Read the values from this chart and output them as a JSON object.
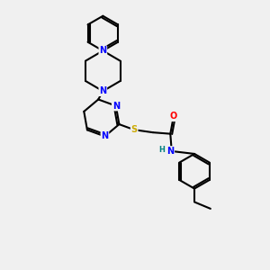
{
  "bg_color": "#f0f0f0",
  "atom_colors": {
    "N": "#0000ff",
    "O": "#ff0000",
    "S": "#ccaa00",
    "H": "#008080"
  },
  "bond_color": "#000000",
  "line_width": 1.5
}
